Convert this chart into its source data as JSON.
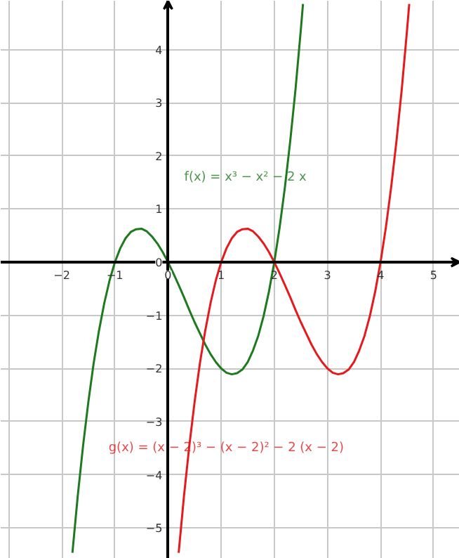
{
  "chart_data": {
    "type": "line",
    "xlim": [
      -3.15,
      5.49
    ],
    "ylim": [
      -5.58,
      4.92
    ],
    "xticks": [
      {
        "value": -3,
        "label": null
      },
      -2,
      -1,
      0,
      1,
      2,
      3,
      4,
      5
    ],
    "yticks": [
      -5,
      -4,
      -3,
      -2,
      -1,
      0,
      1,
      2,
      3,
      4
    ],
    "grid": true,
    "marker": "none",
    "line_style": "solid",
    "series": [
      {
        "name": "f(x) = x³ − x² − 2 x",
        "color": "#1e7a1e",
        "x": [
          -1.8,
          -1.7,
          -1.6,
          -1.5,
          -1.4,
          -1.3,
          -1.2,
          -1.1,
          -1.0,
          -0.9,
          -0.8,
          -0.7,
          -0.6,
          -0.5,
          -0.4,
          -0.3,
          -0.2,
          -0.1,
          0,
          0.1,
          0.2,
          0.3,
          0.4,
          0.5,
          0.6,
          0.7,
          0.8,
          0.9,
          1.0,
          1.1,
          1.2,
          1.3,
          1.4,
          1.5,
          1.6,
          1.7,
          1.8,
          1.9,
          2.0,
          2.1,
          2.2,
          2.3,
          2.4,
          2.5,
          2.54
        ],
        "values": [
          -5.47,
          -4.4,
          -3.46,
          -2.63,
          -1.9,
          -1.29,
          -0.77,
          -0.34,
          0,
          0.26,
          0.45,
          0.57,
          0.62,
          0.63,
          0.58,
          0.48,
          0.35,
          0.19,
          0,
          -0.21,
          -0.43,
          -0.66,
          -0.9,
          -1.13,
          -1.34,
          -1.55,
          -1.73,
          -1.88,
          -2,
          -2.08,
          -2.11,
          -2.09,
          -2.02,
          -1.88,
          -1.66,
          -1.38,
          -1.01,
          -0.55,
          0,
          0.65,
          1.41,
          2.28,
          3.26,
          4.38,
          4.86
        ]
      },
      {
        "name": "g(x) = (x − 2)³ − (x − 2)² − 2 (x − 2)",
        "color": "#e41a1c",
        "x": [
          0.2,
          0.3,
          0.4,
          0.5,
          0.6,
          0.7,
          0.8,
          0.9,
          1.0,
          1.1,
          1.2,
          1.3,
          1.4,
          1.5,
          1.6,
          1.7,
          1.8,
          1.9,
          2,
          2.1,
          2.2,
          2.3,
          2.4,
          2.5,
          2.6,
          2.7,
          2.8,
          2.9,
          3.0,
          3.1,
          3.2,
          3.3,
          3.4,
          3.5,
          3.6,
          3.7,
          3.8,
          3.9,
          4.0,
          4.1,
          4.2,
          4.3,
          4.4,
          4.5,
          4.54
        ],
        "values": [
          -5.47,
          -4.4,
          -3.46,
          -2.63,
          -1.9,
          -1.29,
          -0.77,
          -0.34,
          0,
          0.26,
          0.45,
          0.57,
          0.62,
          0.63,
          0.58,
          0.48,
          0.35,
          0.19,
          0,
          -0.21,
          -0.43,
          -0.66,
          -0.9,
          -1.13,
          -1.34,
          -1.55,
          -1.73,
          -1.88,
          -2,
          -2.08,
          -2.11,
          -2.09,
          -2.02,
          -1.88,
          -1.66,
          -1.38,
          -1.01,
          -0.55,
          0,
          0.65,
          1.41,
          2.28,
          3.26,
          4.38,
          4.86
        ]
      }
    ]
  }
}
